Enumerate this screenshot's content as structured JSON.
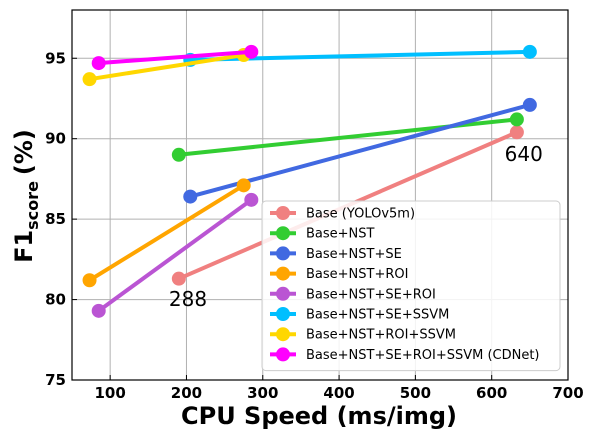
{
  "chart_data": {
    "type": "line",
    "xlabel": "CPU Speed (ms/img)",
    "ylabel_main": "F1",
    "ylabel_sub": "score",
    "ylabel_suffix": "(%)",
    "xlim": [
      50,
      700
    ],
    "ylim": [
      75,
      98
    ],
    "xticks": [
      100,
      200,
      300,
      400,
      500,
      600,
      700
    ],
    "yticks": [
      75,
      80,
      85,
      90,
      95
    ],
    "grid": true,
    "legend_position": "lower-right",
    "series": [
      {
        "name": "Base (YOLOv5m)",
        "color": "#f08080",
        "points": [
          [
            190,
            81.3
          ],
          [
            633,
            90.4
          ]
        ]
      },
      {
        "name": "Base+NST",
        "color": "#32cd32",
        "points": [
          [
            190,
            89.0
          ],
          [
            633,
            91.2
          ]
        ]
      },
      {
        "name": "Base+NST+SE",
        "color": "#4169e1",
        "points": [
          [
            205,
            86.4
          ],
          [
            650,
            92.1
          ]
        ]
      },
      {
        "name": "Base+NST+ROI",
        "color": "#ffa500",
        "points": [
          [
            73,
            81.2
          ],
          [
            275,
            87.1
          ]
        ]
      },
      {
        "name": "Base+NST+SE+ROI",
        "color": "#ba55d3",
        "points": [
          [
            85,
            79.3
          ],
          [
            285,
            86.2
          ]
        ]
      },
      {
        "name": "Base+NST+SE+SSVM",
        "color": "#00bfff",
        "points": [
          [
            205,
            94.9
          ],
          [
            650,
            95.4
          ]
        ]
      },
      {
        "name": "Base+NST+ROI+SSVM",
        "color": "#ffd700",
        "points": [
          [
            73,
            93.7
          ],
          [
            275,
            95.2
          ]
        ]
      },
      {
        "name": "Base+NST+SE+ROI+SSVM (CDNet)",
        "color": "#ff00ff",
        "points": [
          [
            85,
            94.7
          ],
          [
            285,
            95.4
          ]
        ]
      }
    ],
    "annotations": [
      {
        "text": "640",
        "x": 617,
        "y": 88.6
      },
      {
        "text": "288",
        "x": 177,
        "y": 79.6
      }
    ]
  }
}
